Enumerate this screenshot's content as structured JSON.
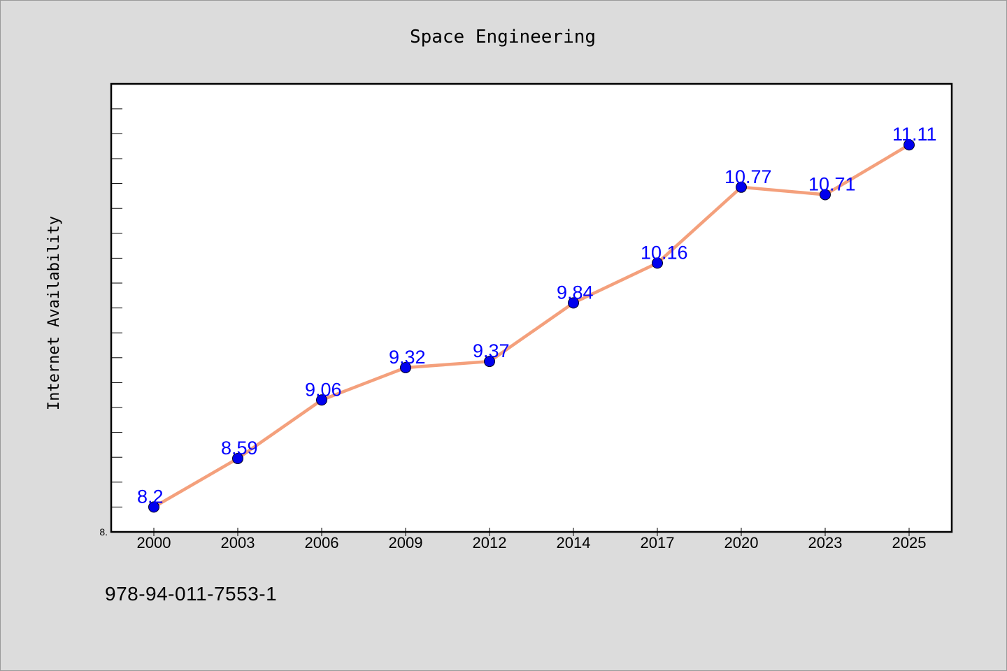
{
  "chart_data": {
    "type": "line",
    "title": "Space Engineering",
    "xlabel": "",
    "ylabel": "Internet Availability",
    "categories": [
      "2000",
      "2003",
      "2006",
      "2009",
      "2012",
      "2014",
      "2017",
      "2020",
      "2023",
      "2025"
    ],
    "series": [
      {
        "values": [
          8.2,
          8.59,
          9.06,
          9.32,
          9.37,
          9.84,
          10.16,
          10.77,
          10.71,
          11.11
        ],
        "data_labels": [
          "8.2",
          "8.59",
          "9.06",
          "9.32",
          "9.37",
          "9.84",
          "10.16",
          "10.77",
          "10.71",
          "11.11"
        ]
      }
    ],
    "ylim": [
      8.0,
      11.6
    ],
    "ytick_label": "8.",
    "grid": false,
    "legend": "none",
    "colors": {
      "line": "#f4a07c",
      "marker": "#0000ee",
      "label": "#0000ff",
      "background": "#dcdcdc",
      "plot_area": "#ffffff"
    }
  },
  "footer": {
    "isbn": "978-94-011-7553-1"
  }
}
